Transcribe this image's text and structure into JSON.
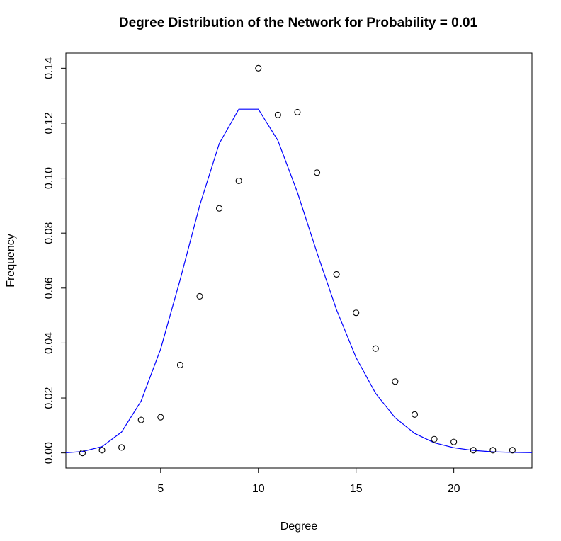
{
  "chart_data": {
    "type": "scatter",
    "title": "Degree Distribution of the Network for Probability =  0.01",
    "xlabel": "Degree",
    "ylabel": "Frequency",
    "xlim": [
      0.15,
      24.0
    ],
    "ylim": [
      -0.0055,
      0.1455
    ],
    "x_ticks": [
      5,
      10,
      15,
      20
    ],
    "y_ticks": [
      0.0,
      0.02,
      0.04,
      0.06,
      0.08,
      0.1,
      0.12,
      0.14
    ],
    "y_tick_labels": [
      "0.00",
      "0.02",
      "0.04",
      "0.06",
      "0.08",
      "0.10",
      "0.12",
      "0.14"
    ],
    "grid": false,
    "points_series": {
      "marker": "open-circle",
      "color": "#000000",
      "x": [
        1,
        2,
        3,
        4,
        5,
        6,
        7,
        8,
        9,
        10,
        11,
        12,
        13,
        14,
        15,
        16,
        17,
        18,
        19,
        20,
        21,
        22,
        23
      ],
      "y": [
        0.0,
        0.001,
        0.002,
        0.012,
        0.013,
        0.032,
        0.057,
        0.089,
        0.099,
        0.14,
        0.123,
        0.124,
        0.102,
        0.065,
        0.051,
        0.038,
        0.026,
        0.014,
        0.005,
        0.004,
        0.001,
        0.001,
        0.001
      ]
    },
    "line_series": {
      "color": "#0000ff",
      "x": [
        0,
        1,
        2,
        3,
        4,
        5,
        6,
        7,
        8,
        9,
        10,
        11,
        12,
        13,
        14,
        15,
        16,
        17,
        18,
        19,
        20,
        21,
        22,
        23,
        24
      ],
      "y": [
        0.0,
        0.0005,
        0.0023,
        0.0076,
        0.0189,
        0.0378,
        0.0631,
        0.0901,
        0.1126,
        0.1251,
        0.1251,
        0.1137,
        0.0948,
        0.0729,
        0.0521,
        0.0347,
        0.0217,
        0.0128,
        0.0071,
        0.0037,
        0.0019,
        0.0009,
        0.0004,
        0.0002,
        0.0001
      ]
    }
  }
}
